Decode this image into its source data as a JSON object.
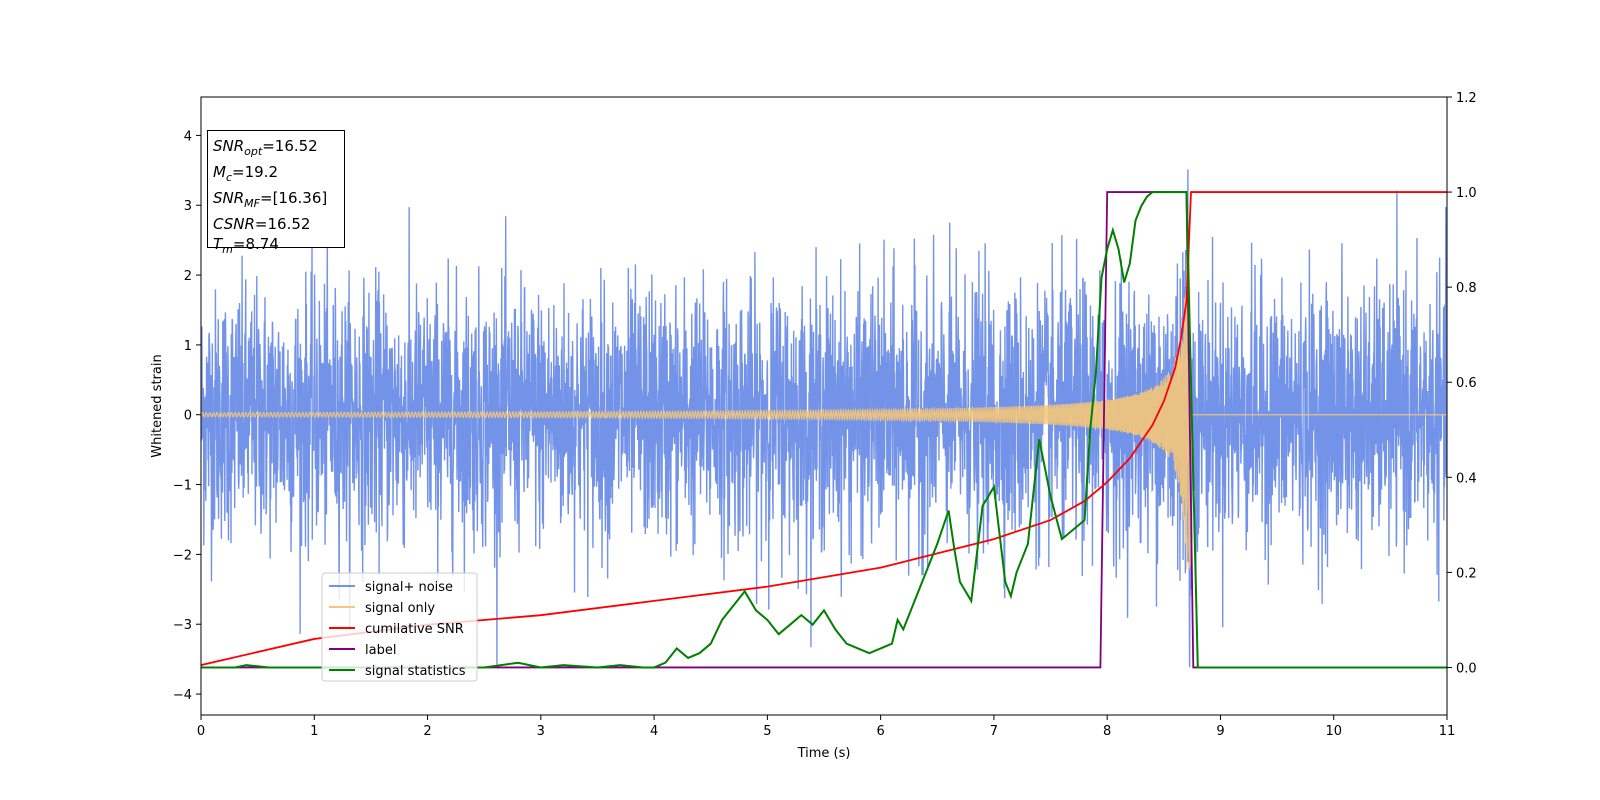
{
  "chart_data": {
    "type": "line",
    "xlabel": "Time (s)",
    "ylabel": "Whitened strain",
    "xlim": [
      0,
      11
    ],
    "ylim": [
      -4.3,
      4.55
    ],
    "y2lim": [
      -0.1,
      1.2
    ],
    "x_ticks": [
      "0",
      "1",
      "2",
      "3",
      "4",
      "5",
      "6",
      "7",
      "8",
      "9",
      "10",
      "11"
    ],
    "y_ticks": [
      "4",
      "3",
      "2",
      "1",
      "0",
      "−1",
      "−2",
      "−3",
      "−4"
    ],
    "y2_ticks": [
      "1.2",
      "1.0",
      "0.8",
      "0.6",
      "0.4",
      "0.2",
      "0.0"
    ],
    "grid": false,
    "legend_position": "lower-left",
    "annotation": [
      {
        "sym": "SNR",
        "sub": "opt",
        "val": "=16.52"
      },
      {
        "sym": "M",
        "sub": "c",
        "val": "=19.2"
      },
      {
        "sym": "SNR",
        "sub": "MF",
        "val": "=[16.36]"
      },
      {
        "sym": "CSNR",
        "sub": "",
        "val": "=16.52"
      },
      {
        "sym": "T",
        "sub": "m",
        "val": "=8.74"
      }
    ],
    "series": [
      {
        "name": "signal+ noise",
        "color": "#7393e8",
        "axis": "left",
        "description_values": {
          "noise_std": 0.9,
          "peak": 4.18,
          "trough": -3.9
        }
      },
      {
        "name": "signal only",
        "color": "#f5c77a",
        "axis": "left",
        "chirp": {
          "t_start": 0,
          "t_merge": 8.74,
          "amp_start": 0.03,
          "amp_end": 2.5
        }
      },
      {
        "name": "cumilative SNR",
        "color": "#ff0000",
        "axis": "right",
        "x": [
          0,
          1,
          2,
          3,
          4,
          5,
          6,
          6.5,
          7,
          7.5,
          7.8,
          8.0,
          8.2,
          8.4,
          8.5,
          8.6,
          8.65,
          8.7,
          8.74,
          11
        ],
        "y": [
          0.005,
          0.06,
          0.09,
          0.11,
          0.14,
          0.17,
          0.21,
          0.24,
          0.27,
          0.31,
          0.35,
          0.39,
          0.44,
          0.51,
          0.56,
          0.63,
          0.69,
          0.77,
          1.0,
          1.0
        ]
      },
      {
        "name": "label",
        "color": "#800080",
        "axis": "right",
        "x": [
          0,
          7.94,
          8.0,
          8.7,
          8.76,
          11
        ],
        "y": [
          0.0,
          0.0,
          1.0,
          1.0,
          0.0,
          0.0
        ]
      },
      {
        "name": "signal statistics",
        "color": "#008000",
        "axis": "right",
        "x": [
          0,
          0.3,
          0.4,
          0.6,
          1.0,
          1.5,
          2.0,
          2.5,
          2.8,
          3.0,
          3.2,
          3.5,
          3.7,
          3.9,
          4.0,
          4.1,
          4.2,
          4.3,
          4.4,
          4.5,
          4.6,
          4.7,
          4.8,
          4.9,
          5.0,
          5.1,
          5.2,
          5.3,
          5.4,
          5.5,
          5.6,
          5.7,
          5.8,
          5.9,
          6.0,
          6.1,
          6.15,
          6.2,
          6.3,
          6.4,
          6.5,
          6.6,
          6.65,
          6.7,
          6.8,
          6.9,
          7.0,
          7.1,
          7.15,
          7.2,
          7.3,
          7.4,
          7.45,
          7.5,
          7.6,
          7.7,
          7.8,
          7.85,
          7.9,
          7.95,
          8.0,
          8.05,
          8.1,
          8.15,
          8.2,
          8.25,
          8.3,
          8.35,
          8.4,
          8.5,
          8.6,
          8.7,
          8.8,
          11
        ],
        "y": [
          0.0,
          0.0,
          0.005,
          0.0,
          0.0,
          0.0,
          0.0,
          0.0,
          0.01,
          0.0,
          0.005,
          0.0,
          0.005,
          0.0,
          0.0,
          0.01,
          0.04,
          0.02,
          0.03,
          0.05,
          0.1,
          0.13,
          0.16,
          0.12,
          0.1,
          0.07,
          0.09,
          0.11,
          0.09,
          0.12,
          0.08,
          0.05,
          0.04,
          0.03,
          0.04,
          0.05,
          0.1,
          0.08,
          0.14,
          0.2,
          0.26,
          0.33,
          0.25,
          0.18,
          0.14,
          0.34,
          0.38,
          0.18,
          0.15,
          0.2,
          0.26,
          0.48,
          0.42,
          0.36,
          0.27,
          0.29,
          0.31,
          0.5,
          0.62,
          0.82,
          0.88,
          0.92,
          0.88,
          0.81,
          0.85,
          0.94,
          0.97,
          0.99,
          1.0,
          1.0,
          1.0,
          1.0,
          0.0,
          0.0
        ]
      }
    ]
  }
}
